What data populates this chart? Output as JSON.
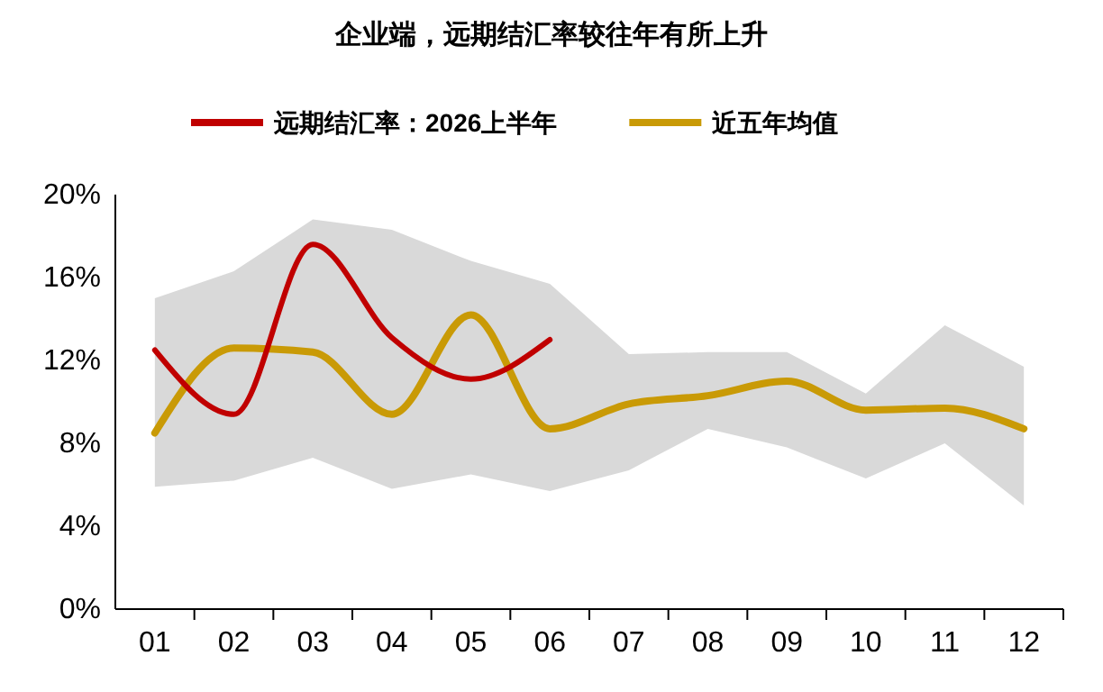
{
  "chart_data": {
    "type": "line",
    "title": "企业端，远期结汇率较往年有所上升",
    "categories": [
      "01",
      "02",
      "03",
      "04",
      "05",
      "06",
      "07",
      "08",
      "09",
      "10",
      "11",
      "12"
    ],
    "series": [
      {
        "name": "远期结汇率：2026上半年",
        "color": "#c00000",
        "values": [
          12.5,
          9.4,
          17.6,
          13.1,
          11.1,
          13.0,
          null,
          null,
          null,
          null,
          null,
          null
        ]
      },
      {
        "name": "近五年均值",
        "color": "#c99a06",
        "values": [
          8.5,
          12.6,
          12.4,
          9.4,
          14.2,
          8.7,
          9.9,
          10.3,
          11.0,
          9.6,
          9.7,
          8.7
        ],
        "lower": [
          5.9,
          6.2,
          7.3,
          5.8,
          6.5,
          5.7,
          6.7,
          8.7,
          7.8,
          6.3,
          8.0,
          5.0
        ],
        "upper": [
          15.0,
          16.3,
          18.8,
          18.3,
          16.8,
          15.7,
          12.3,
          12.4,
          12.4,
          10.4,
          13.7,
          11.7
        ]
      }
    ],
    "ylim": [
      0,
      20
    ],
    "yticks": [
      {
        "value": 0,
        "label": "0%"
      },
      {
        "value": 4,
        "label": "4%"
      },
      {
        "value": 8,
        "label": "8%"
      },
      {
        "value": 12,
        "label": "12%"
      },
      {
        "value": 16,
        "label": "16%"
      },
      {
        "value": 20,
        "label": "20%"
      }
    ],
    "legend": "top",
    "grid": false,
    "marker": "none",
    "line_style": "solid"
  }
}
